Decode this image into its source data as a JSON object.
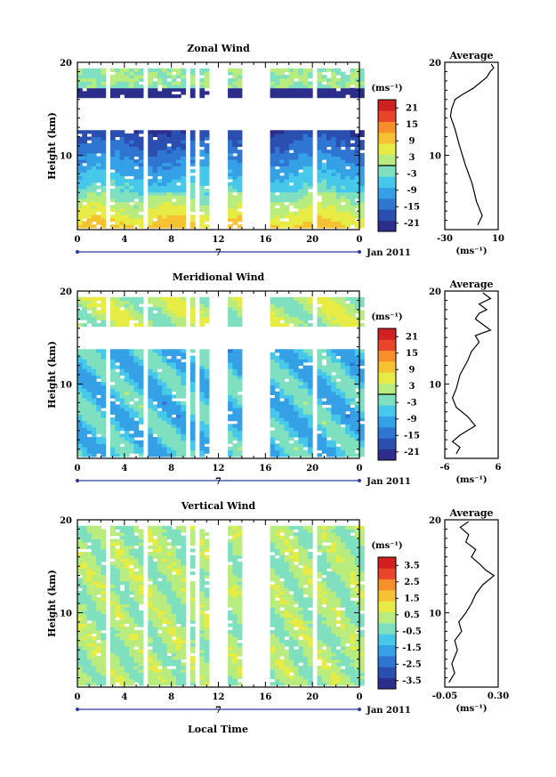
{
  "figure": {
    "xlabel": "Local Time",
    "date_label": "Jan 2011",
    "x_ticks": [
      "0",
      "4",
      "8",
      "12",
      "16",
      "20",
      "0"
    ],
    "day_label": "7",
    "ylabel": "Height (km)",
    "y_ticks": [
      "20",
      "10"
    ],
    "unit": "(ms⁻¹)",
    "avg_title": "Average",
    "avg_unit": "(ms⁻¹)"
  },
  "colors": {
    "scale": [
      "#2c2e8c",
      "#2a4fb0",
      "#2f76d2",
      "#35a0e6",
      "#46c8ea",
      "#7fe0c0",
      "#b8ec7e",
      "#e6ec44",
      "#f7c232",
      "#f78f2a",
      "#e8452b",
      "#d02020"
    ]
  },
  "chart_data": [
    {
      "type": "heatmap",
      "title": "Zonal Wind",
      "xlabel": "",
      "ylabel": "Height (km)",
      "xlim": [
        0,
        24
      ],
      "ylim": [
        2,
        20
      ],
      "colorbar_ticks": [
        "21",
        "15",
        "9",
        "3",
        "-3",
        "-9",
        "-15",
        "-21"
      ],
      "colorbar_range": [
        -24,
        24
      ],
      "zero_line": 0,
      "profile": {
        "title": "Average",
        "xticks": [
          "-30",
          "10"
        ],
        "xlim": [
          -35,
          12
        ],
        "points": [
          [
            -6,
            2.5
          ],
          [
            -2,
            3.5
          ],
          [
            -7,
            5
          ],
          [
            -11,
            7
          ],
          [
            -17,
            9
          ],
          [
            -22,
            11
          ],
          [
            -26,
            12.8
          ],
          [
            -30,
            14.2
          ],
          [
            -29,
            15
          ],
          [
            -26,
            16
          ],
          [
            -20,
            16.5
          ],
          [
            -10,
            17.2
          ],
          [
            -4,
            17.8
          ],
          [
            2,
            18.4
          ],
          [
            5,
            19.0
          ],
          [
            8,
            19.4
          ],
          [
            6,
            19.8
          ]
        ]
      }
    },
    {
      "type": "heatmap",
      "title": "Meridional Wind",
      "xlabel": "",
      "ylabel": "Height (km)",
      "xlim": [
        0,
        24
      ],
      "ylim": [
        2,
        20
      ],
      "colorbar_ticks": [
        "21",
        "15",
        "9",
        "3",
        "-3",
        "-9",
        "-15",
        "-21"
      ],
      "colorbar_range": [
        -24,
        24
      ],
      "zero_line": 0,
      "profile": {
        "title": "Average",
        "xticks": [
          "-6",
          "6"
        ],
        "xlim": [
          -7,
          7
        ],
        "points": [
          [
            -4,
            2.5
          ],
          [
            -3,
            3.2
          ],
          [
            -5,
            3.8
          ],
          [
            -3,
            4.5
          ],
          [
            1,
            5.5
          ],
          [
            -1,
            6.5
          ],
          [
            -4,
            7.5
          ],
          [
            -5,
            8.5
          ],
          [
            -4,
            9.5
          ],
          [
            -3,
            11
          ],
          [
            -1,
            12.5
          ],
          [
            0,
            13.5
          ],
          [
            2,
            14.5
          ],
          [
            1,
            15.2
          ],
          [
            5,
            15.8
          ],
          [
            3,
            16.4
          ],
          [
            1,
            17
          ],
          [
            2,
            17.6
          ],
          [
            4,
            18
          ],
          [
            2,
            18.6
          ],
          [
            5,
            19.2
          ],
          [
            3,
            19.8
          ]
        ]
      }
    },
    {
      "type": "heatmap",
      "title": "Vertical Wind",
      "xlabel": "Local Time",
      "ylabel": "Height (km)",
      "xlim": [
        0,
        24
      ],
      "ylim": [
        2,
        20
      ],
      "colorbar_ticks": [
        "3.5",
        "2.5",
        "1.5",
        "0.5",
        "-0.5",
        "-1.5",
        "-2.5",
        "-3.5"
      ],
      "colorbar_range": [
        -4,
        4
      ],
      "zero_line": null,
      "profile": {
        "title": "Average",
        "xticks": [
          "-0.05",
          "0.30"
        ],
        "xlim": [
          -0.07,
          0.31
        ],
        "points": [
          [
            -0.04,
            2.5
          ],
          [
            0.0,
            3.5
          ],
          [
            -0.02,
            4.5
          ],
          [
            0.02,
            6
          ],
          [
            0.0,
            7
          ],
          [
            0.05,
            8
          ],
          [
            0.03,
            9
          ],
          [
            0.08,
            10
          ],
          [
            0.12,
            11
          ],
          [
            0.15,
            12
          ],
          [
            0.2,
            13
          ],
          [
            0.28,
            14
          ],
          [
            0.22,
            14.6
          ],
          [
            0.18,
            15.2
          ],
          [
            0.12,
            16
          ],
          [
            0.15,
            16.8
          ],
          [
            0.08,
            17.6
          ],
          [
            0.1,
            18.4
          ],
          [
            0.04,
            19.2
          ],
          [
            0.1,
            19.8
          ]
        ]
      }
    }
  ]
}
